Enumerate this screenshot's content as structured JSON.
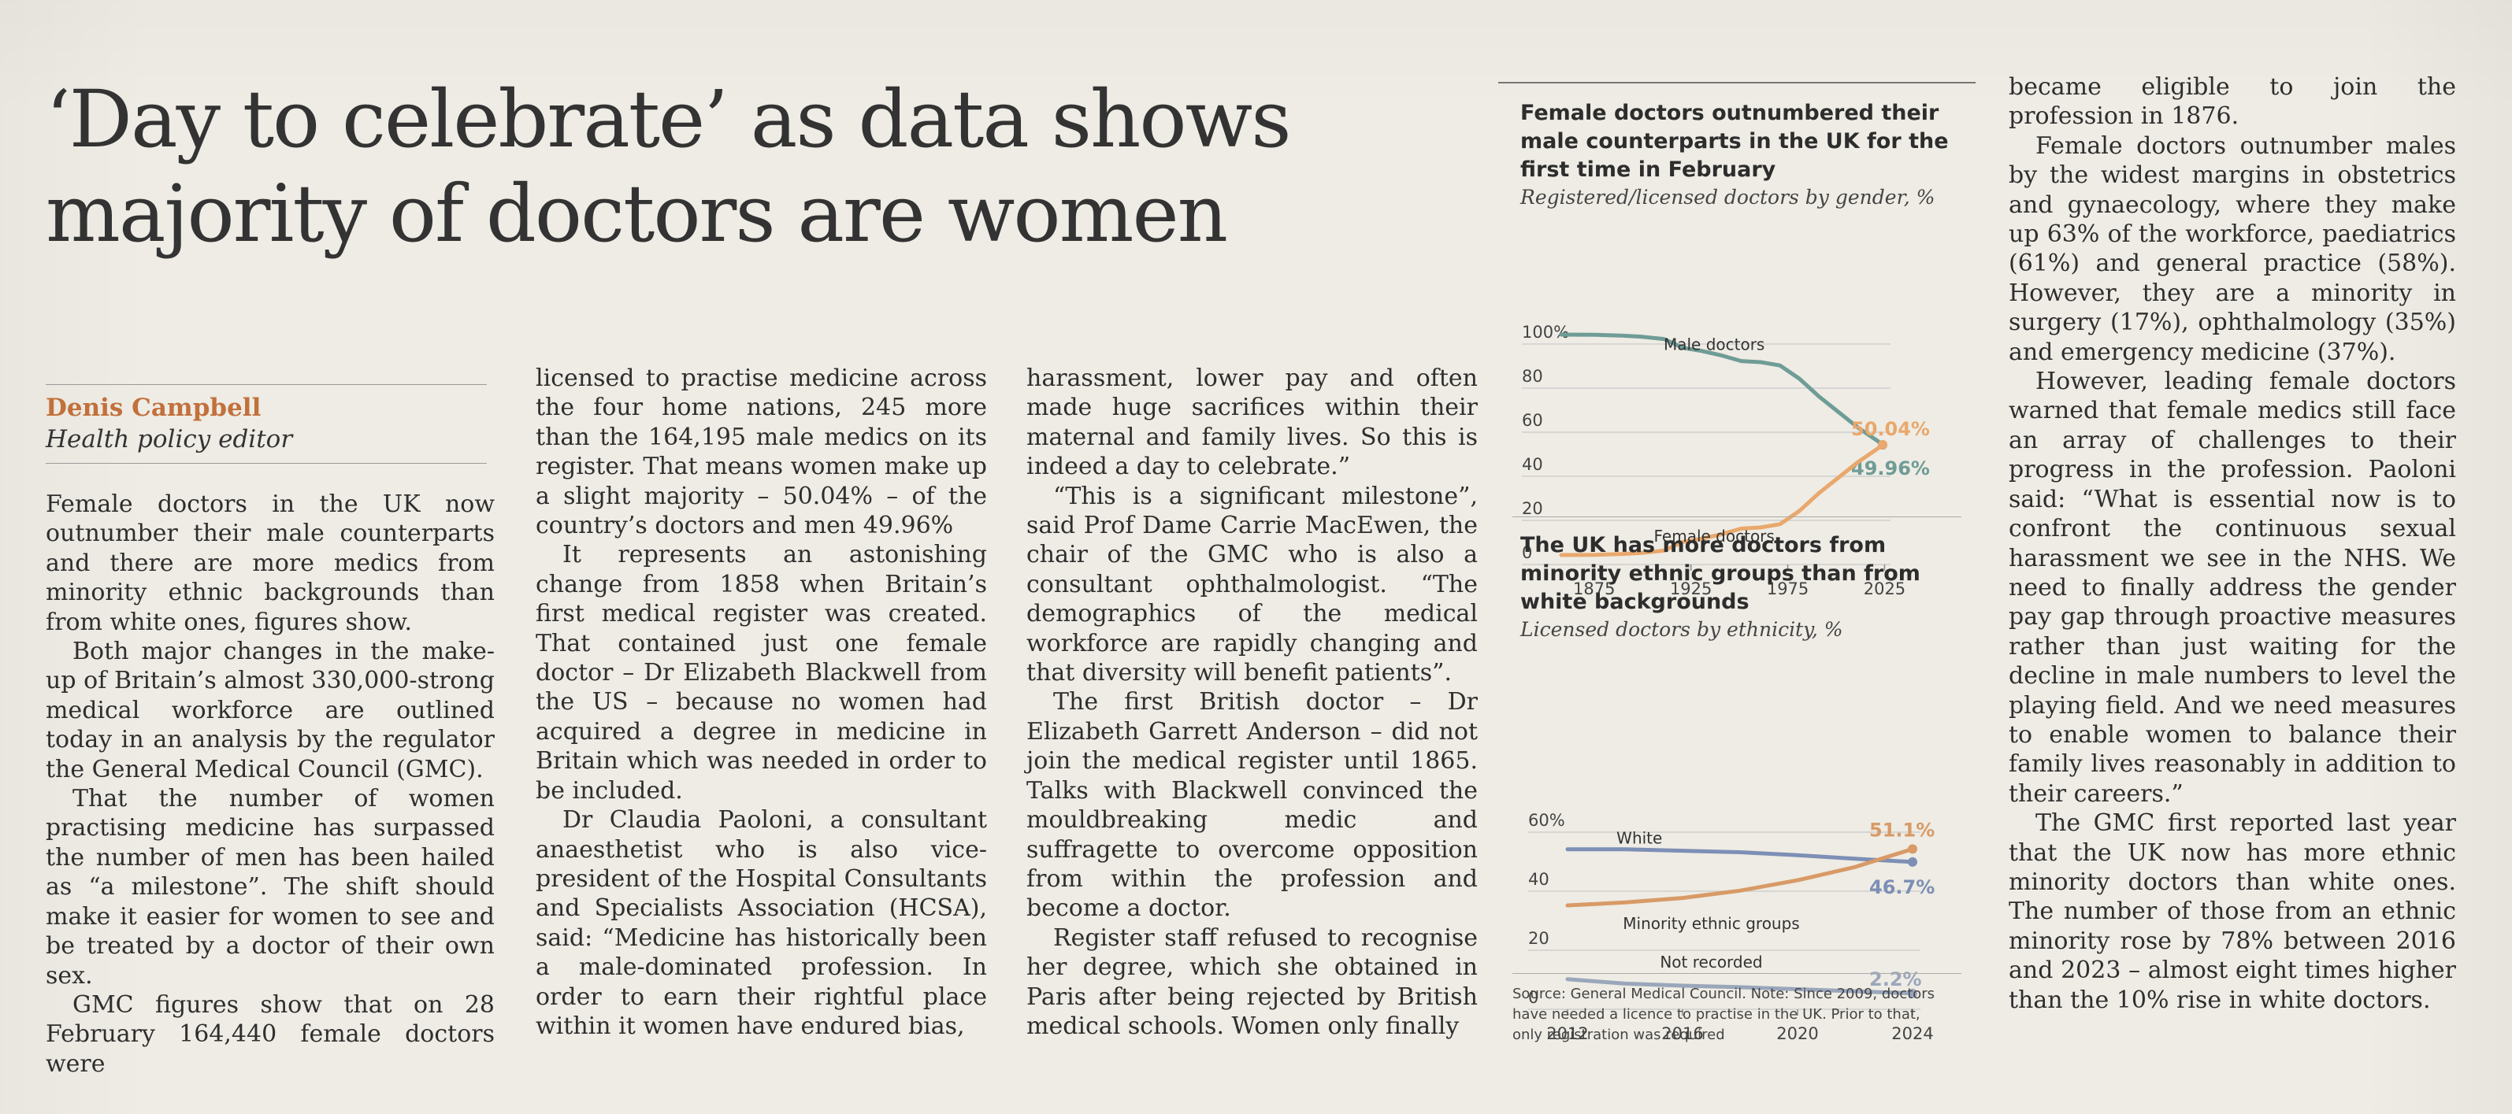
{
  "article": {
    "headline": "‘Day to celebrate’ as data shows majority of doctors are women",
    "author": "Denis Campbell",
    "role": "Health policy editor",
    "col1": [
      "Female doctors in the UK now outnumber their male counterparts and there are more medics from minority ethnic backgrounds than from white ones, figures show.",
      "Both major changes in the make-up of Britain’s almost 330,000-strong medical workforce are outlined today in an analysis by the regulator the General Medical Council (GMC).",
      "That the number of women practising medicine has surpassed the number of men has been hailed as “a milestone”. The shift should make it easier for women to see and be treated by a doctor of their own sex.",
      "GMC figures show that on 28 February 164,440 female doctors were"
    ],
    "col2": [
      "licensed to practise medicine across the four home nations, 245 more than the 164,195 male medics on its register. That means women make up a slight majority – 50.04% – of the country’s doctors and men 49.96%",
      "It represents an astonishing change from 1858 when Britain’s first medical register was created. That contained just one female doctor – Dr Elizabeth Blackwell from the US – because no women had acquired a degree in medicine in Britain which was needed in order to be included.",
      "Dr Claudia Paoloni, a consultant anaesthetist who is also vice-president of the Hospital Consultants and Specialists Association (HCSA), said: “Medicine has historically been a male-dominated profession. In order to earn their rightful place within it women have endured bias,"
    ],
    "col3": [
      "harassment, lower pay and often made huge sacrifices within their maternal and family lives. So this is indeed a day to celebrate.”",
      "“This is a significant milestone”, said Prof Dame Carrie MacEwen, the chair of the GMC who is also a consultant ophthalmologist. “The demographics of the medical workforce are rapidly changing and that diversity will benefit patients”.",
      "The first British doctor – Dr Elizabeth Garrett Anderson – did not join the medical register until 1865. Talks with Blackwell convinced the mouldbreaking medic and suffragette to overcome opposition from within the profession and become a doctor.",
      "Register staff refused to recognise her degree, which she obtained in Paris after being rejected by British medical schools. Women only finally"
    ],
    "col4": [
      "became eligible to join the profession in 1876.",
      "Female doctors outnumber males by the widest margins in obstetrics and gynaecology, where they make up 63% of the workforce, paediatrics (61%) and general practice (58%). However, they are a minority in surgery (17%), ophthalmology (35%) and emergency medicine (37%).",
      "However, leading female doctors warned that female medics still face an array of challenges to their progress in the profession. Paoloni said: “What is essential now is to confront the continuous sexual harassment we see in the NHS. We need to finally address the gender pay gap through proactive measures rather than just waiting for the decline in male numbers to level the playing field. And we need measures to enable women to balance their family lives reasonably in addition to their careers.”",
      "The GMC first reported last year that the UK now has more ethnic minority doctors than white ones. The number of those from an ethnic minority rose by 78% between 2016 and 2023 – almost eight times higher than the 10% rise in white doctors."
    ]
  },
  "colors": {
    "male": "#6f9c96",
    "female": "#e9a86d",
    "white": "#7d8fb5",
    "minority": "#d89a66",
    "not_recorded": "#9aa6bb",
    "byline": "#c2703c"
  },
  "chart_data": [
    {
      "type": "line",
      "title": "Female doctors outnumbered their male counterparts in the UK for the first time in February",
      "subtitle": "Registered/licensed doctors by gender, %",
      "x_ticks": [
        "1875",
        "1925",
        "1975",
        "2025"
      ],
      "y_ticks": [
        "100%",
        "80",
        "60",
        "40",
        "20",
        "0"
      ],
      "xlim": [
        1858,
        2024
      ],
      "ylim": [
        0,
        100
      ],
      "grid": true,
      "series": [
        {
          "name": "Male doctors",
          "x": [
            1858,
            1876,
            1890,
            1900,
            1911,
            1921,
            1931,
            1941,
            1951,
            1961,
            1971,
            1981,
            1991,
            2001,
            2011,
            2016,
            2021,
            2024
          ],
          "values": [
            100,
            99.9,
            99.5,
            99,
            98,
            94,
            92.5,
            90.5,
            88,
            87.5,
            86,
            80,
            72,
            65,
            58,
            55,
            52,
            49.96
          ],
          "end_label": "49.96%"
        },
        {
          "name": "Female doctors",
          "x": [
            1858,
            1876,
            1890,
            1900,
            1911,
            1921,
            1931,
            1941,
            1951,
            1961,
            1971,
            1981,
            1991,
            2001,
            2011,
            2016,
            2021,
            2024
          ],
          "values": [
            0,
            0.1,
            0.5,
            1,
            2,
            6,
            7.5,
            9.5,
            12,
            12.5,
            14,
            20,
            28,
            35,
            42,
            45,
            48,
            50.04
          ],
          "end_label": "50.04%"
        }
      ]
    },
    {
      "type": "line",
      "title": "The UK has more doctors from minority ethnic groups than from white backgrounds",
      "subtitle": "Licensed doctors by ethnicity, %",
      "x_ticks": [
        "2012",
        "2016",
        "2020",
        "2024"
      ],
      "y_ticks": [
        "60%",
        "40",
        "20",
        "0"
      ],
      "xlim": [
        2012,
        2024
      ],
      "ylim": [
        0,
        60
      ],
      "grid": true,
      "series": [
        {
          "name": "White",
          "x": [
            2012,
            2014,
            2016,
            2018,
            2020,
            2022,
            2024
          ],
          "values": [
            51,
            51,
            50.5,
            50,
            49,
            47.8,
            46.7
          ],
          "end_label": "46.7%"
        },
        {
          "name": "Minority ethnic groups",
          "x": [
            2012,
            2014,
            2016,
            2018,
            2020,
            2022,
            2024
          ],
          "values": [
            32,
            33,
            34.5,
            37,
            40.5,
            45,
            51.1
          ],
          "end_label": "51.1%"
        },
        {
          "name": "Not recorded",
          "x": [
            2012,
            2014,
            2016,
            2018,
            2020,
            2022,
            2024
          ],
          "values": [
            7,
            5.5,
            4.8,
            4.3,
            3.6,
            2.9,
            2.2
          ],
          "end_label": "2.2%"
        }
      ]
    }
  ],
  "graphic": {
    "source": "Source: General Medical Council. Note: Since 2009, doctors have needed a licence to practise in the UK. Prior to that, only registration was required"
  }
}
